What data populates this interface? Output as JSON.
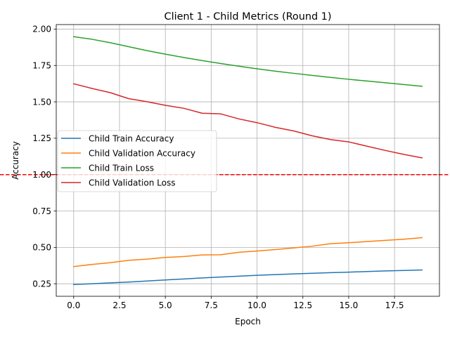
{
  "chart_data": {
    "type": "line",
    "title": "Client 1 - Child Metrics (Round 1)",
    "xlabel": "Epoch",
    "ylabel": "Accuracy",
    "xlim": [
      -0.95,
      19.95
    ],
    "ylim": [
      0.164,
      2.031
    ],
    "xticks": [
      0.0,
      2.5,
      5.0,
      7.5,
      10.0,
      12.5,
      15.0,
      17.5
    ],
    "xtick_labels": [
      "0.0",
      "2.5",
      "5.0",
      "7.5",
      "10.0",
      "12.5",
      "15.0",
      "17.5"
    ],
    "yticks": [
      0.25,
      0.5,
      0.75,
      1.0,
      1.25,
      1.5,
      1.75,
      2.0
    ],
    "ytick_labels": [
      "0.25",
      "0.50",
      "0.75",
      "1.00",
      "1.25",
      "1.50",
      "1.75",
      "2.00"
    ],
    "grid": true,
    "legend_position": "center-left",
    "x": [
      0,
      1,
      2,
      3,
      4,
      5,
      6,
      7,
      8,
      9,
      10,
      11,
      12,
      13,
      14,
      15,
      16,
      17,
      18,
      19
    ],
    "series": [
      {
        "name": "Child Train Accuracy",
        "color": "#1f77b4",
        "values": [
          0.245,
          0.25,
          0.256,
          0.262,
          0.269,
          0.276,
          0.283,
          0.29,
          0.296,
          0.302,
          0.308,
          0.313,
          0.318,
          0.322,
          0.326,
          0.33,
          0.334,
          0.338,
          0.341,
          0.345
        ]
      },
      {
        "name": "Child Validation Accuracy",
        "color": "#ff7f0e",
        "values": [
          0.368,
          0.383,
          0.395,
          0.411,
          0.419,
          0.431,
          0.437,
          0.448,
          0.449,
          0.466,
          0.475,
          0.485,
          0.496,
          0.508,
          0.525,
          0.532,
          0.54,
          0.548,
          0.556,
          0.567
        ]
      },
      {
        "name": "Child Train Loss",
        "color": "#2ca02c",
        "values": [
          1.948,
          1.93,
          1.906,
          1.879,
          1.852,
          1.828,
          1.805,
          1.784,
          1.764,
          1.745,
          1.727,
          1.711,
          1.696,
          1.682,
          1.668,
          1.655,
          1.643,
          1.631,
          1.619,
          1.607
        ]
      },
      {
        "name": "Child Validation Loss",
        "color": "#d62728",
        "values": [
          1.624,
          1.592,
          1.563,
          1.522,
          1.501,
          1.476,
          1.456,
          1.422,
          1.418,
          1.383,
          1.357,
          1.325,
          1.3,
          1.267,
          1.241,
          1.225,
          1.195,
          1.166,
          1.139,
          1.115
        ]
      }
    ],
    "reference_line": {
      "y": 1.0,
      "color": "#ff0000",
      "style": "dashed"
    }
  }
}
